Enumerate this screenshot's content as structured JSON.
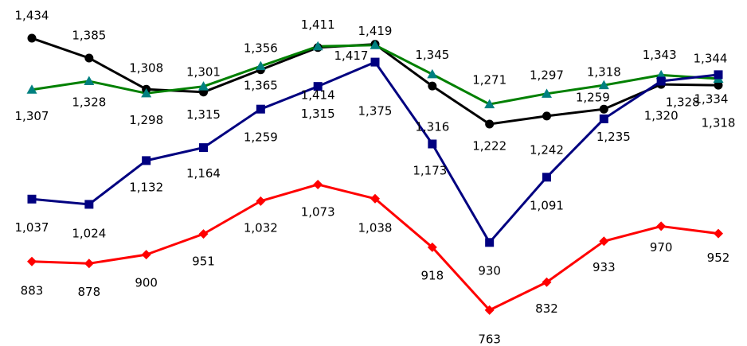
{
  "chart_data": {
    "type": "line",
    "categories": [
      null,
      null,
      null,
      null,
      null,
      null,
      null,
      null,
      null,
      null,
      null,
      null,
      null
    ],
    "ylim": [
      700,
      1500
    ],
    "series": [
      {
        "color": "#000000",
        "marker": "circle",
        "marker_color": "#000000",
        "values": [
          1434,
          1385,
          1308,
          1301,
          1356,
          1411,
          1419,
          1316,
          1222,
          1242,
          1259,
          1320,
          1318
        ],
        "value_labels": [
          "1,434",
          "1,385",
          "1,308",
          "1,301",
          "1,356",
          "1,411",
          "1,419",
          "1,316",
          "1,222",
          "1,242",
          "1,259",
          "1,320",
          "1,318"
        ]
      },
      {
        "color": "#008000",
        "marker": "triangle",
        "marker_color": "#008080",
        "values": [
          1307,
          1328,
          1298,
          1315,
          1365,
          1414,
          1417,
          1345,
          1271,
          1297,
          1318,
          1343,
          1334
        ],
        "value_labels": [
          "1,307",
          "1,328",
          "1,298",
          "1,315",
          "1,365",
          "1,414",
          "1,417",
          "1,345",
          "1,271",
          "1,297",
          "1,318",
          "1,343",
          "1,334"
        ]
      },
      {
        "color": "#000080",
        "marker": "square",
        "marker_color": "#000080",
        "values": [
          1037,
          1024,
          1132,
          1164,
          1259,
          1315,
          1375,
          1173,
          930,
          1091,
          1235,
          1328,
          1344
        ],
        "value_labels": [
          "1,037",
          "1,024",
          "1,132",
          "1,164",
          "1,259",
          "1,315",
          "1,375",
          "1,173",
          "930",
          "1,091",
          "1,235",
          "1,328",
          "1,344"
        ]
      },
      {
        "color": "#ff0000",
        "marker": "diamond",
        "marker_color": "#ff0000",
        "values": [
          883,
          878,
          900,
          951,
          1032,
          1073,
          1038,
          918,
          763,
          832,
          933,
          970,
          952
        ],
        "value_labels": [
          "883",
          "878",
          "900",
          "951",
          "1,032",
          "1,073",
          "1,038",
          "918",
          "763",
          "832",
          "933",
          "970",
          "952"
        ]
      }
    ]
  }
}
